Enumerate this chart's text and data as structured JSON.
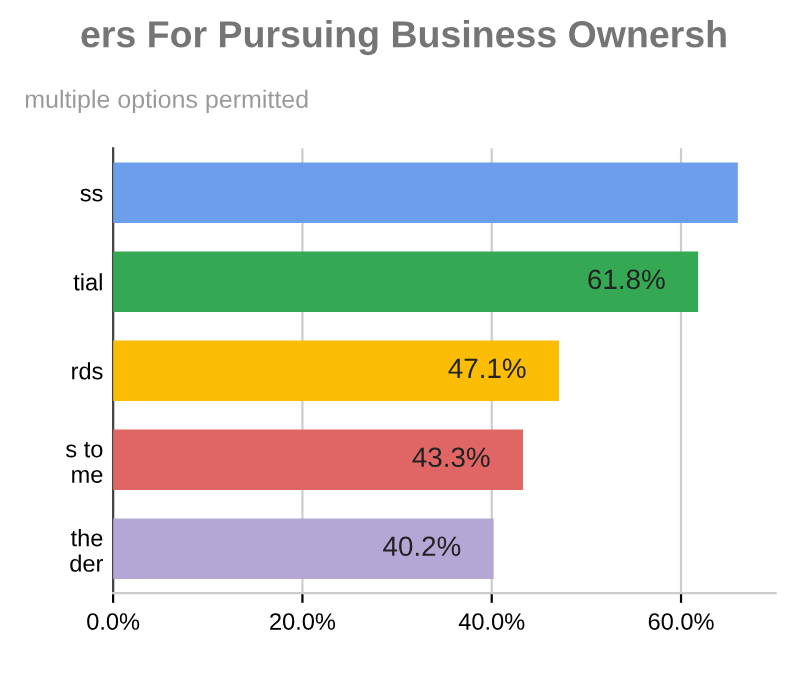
{
  "chart_data": {
    "type": "bar",
    "orientation": "horizontal",
    "title": "ers For Pursuing Business Ownersh",
    "subtitle": "multiple options permitted",
    "categories": [
      "ss",
      "tial",
      "rds",
      "s to\nme",
      "the\nder"
    ],
    "values": [
      66,
      61.8,
      47.1,
      43.3,
      40.2
    ],
    "colors": [
      "#6d9eeb",
      "#34a853",
      "#fbbc04",
      "#e06666",
      "#b4a7d6"
    ],
    "value_labels": [
      null,
      "61.8%",
      "47.1%",
      "43.3%",
      "40.2%"
    ],
    "xlim": [
      0,
      70
    ],
    "xticks": [
      {
        "value": 0,
        "label": "0.0%"
      },
      {
        "value": 20,
        "label": "20.0%"
      },
      {
        "value": 40,
        "label": "40.0%"
      },
      {
        "value": 60,
        "label": "60.0%"
      }
    ],
    "grid": "x",
    "legend": false
  }
}
